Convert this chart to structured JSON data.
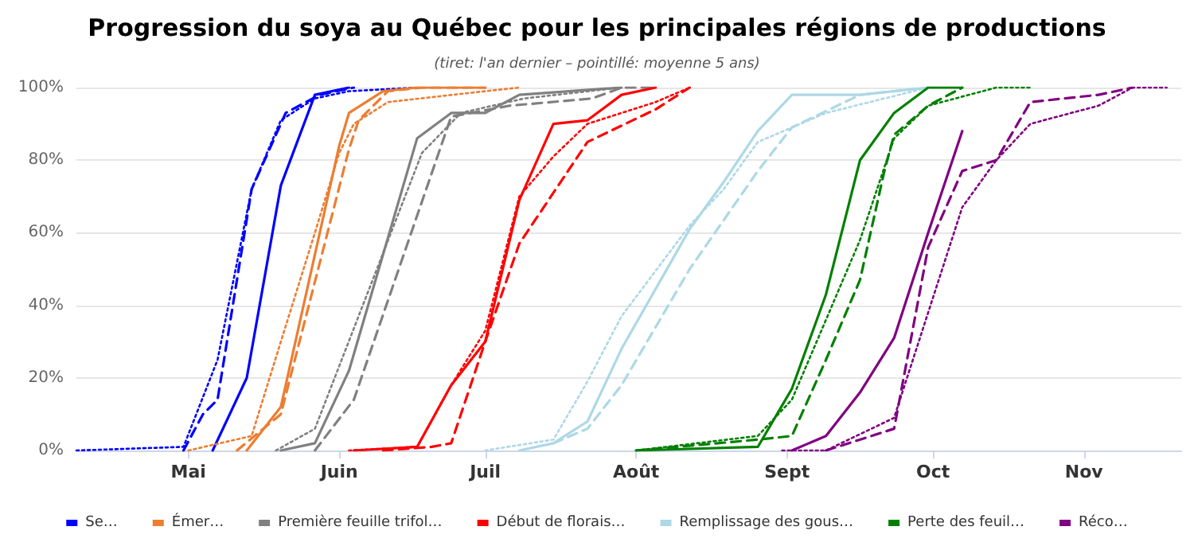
{
  "chart_data": {
    "type": "line",
    "title": "Progression du soya au Québec pour les principales régions de productions",
    "subtitle": "(tiret: l'an dernier – pointillé: moyenne 5 ans)",
    "xlim": [
      "--04-08",
      "--11-21"
    ],
    "xticks": [
      {
        "value": "--05-01",
        "label": "Mai"
      },
      {
        "value": "--06-01",
        "label": "Juin"
      },
      {
        "value": "--07-01",
        "label": "Juil"
      },
      {
        "value": "--08-01",
        "label": "Août"
      },
      {
        "value": "--09-01",
        "label": "Sept"
      },
      {
        "value": "--10-01",
        "label": "Oct"
      },
      {
        "value": "--11-01",
        "label": "Nov"
      }
    ],
    "ylim": [
      0,
      100
    ],
    "yticks": [
      {
        "value": 0,
        "label": "0%"
      },
      {
        "value": 20,
        "label": "20%"
      },
      {
        "value": 40,
        "label": "40%"
      },
      {
        "value": 60,
        "label": "60%"
      },
      {
        "value": 80,
        "label": "80%"
      },
      {
        "value": 100,
        "label": "100%"
      }
    ],
    "grid": "y",
    "legend": "bottom",
    "marker": "none",
    "series": [
      {
        "name": "Se…",
        "color": "#0000ff",
        "line_style": "solid",
        "x": [
          "--05-06",
          "--05-13",
          "--05-20",
          "--05-27",
          "--06-03"
        ],
        "values": [
          0,
          20,
          73,
          98,
          100
        ]
      },
      {
        "color": "#0000ff",
        "line_style": "dashed",
        "x": [
          "--04-30",
          "--05-04",
          "--05-07",
          "--05-14",
          "--05-21",
          "--05-28",
          "--06-04"
        ],
        "values": [
          0,
          10,
          14,
          72,
          93,
          98,
          100
        ]
      },
      {
        "color": "#0000ff",
        "line_style": "dotted",
        "x": [
          "--04-08",
          "--04-30",
          "--05-07",
          "--05-14",
          "--05-20",
          "--05-27",
          "--06-03",
          "--06-17"
        ],
        "values": [
          0,
          1,
          25,
          72,
          91,
          97,
          99,
          100
        ]
      },
      {
        "name": "Émer…",
        "color": "#ed7d31",
        "line_style": "solid",
        "x": [
          "--05-13",
          "--05-20",
          "--06-01",
          "--06-03",
          "--06-10",
          "--06-17",
          "--07-01"
        ],
        "values": [
          0,
          12,
          84,
          93,
          99,
          100,
          100
        ]
      },
      {
        "color": "#ed7d31",
        "line_style": "dashed",
        "x": [
          "--05-11",
          "--05-20",
          "--06-03",
          "--06-05",
          "--06-11",
          "--06-18",
          "--07-01"
        ],
        "values": [
          0,
          10,
          83,
          91,
          99,
          100,
          100
        ]
      },
      {
        "color": "#ed7d31",
        "line_style": "dotted",
        "x": [
          "--05-01",
          "--05-14",
          "--05-20",
          "--05-27",
          "--06-01",
          "--06-04",
          "--06-11",
          "--07-01",
          "--07-08"
        ],
        "values": [
          0,
          4,
          30,
          60,
          82,
          90,
          96,
          99,
          100
        ]
      },
      {
        "name": "Première feuille trifol…",
        "color": "#808080",
        "line_style": "solid",
        "x": [
          "--05-20",
          "--05-27",
          "--06-03",
          "--06-17",
          "--06-24",
          "--07-01",
          "--07-08",
          "--07-29"
        ],
        "values": [
          0,
          2,
          22,
          86,
          93,
          93,
          98,
          100
        ]
      },
      {
        "color": "#808080",
        "line_style": "dashed",
        "x": [
          "--05-27",
          "--06-04",
          "--06-24",
          "--07-06",
          "--07-23",
          "--07-29",
          "--08-05"
        ],
        "values": [
          0,
          14,
          92,
          95,
          97,
          100,
          100
        ]
      },
      {
        "color": "#808080",
        "line_style": "dotted",
        "x": [
          "--05-19",
          "--05-27",
          "--06-18",
          "--06-26",
          "--07-09",
          "--07-29"
        ],
        "values": [
          0,
          6,
          82,
          93,
          97,
          100
        ]
      },
      {
        "name": "Début de florais…",
        "color": "#ff0000",
        "line_style": "solid",
        "x": [
          "--06-04",
          "--06-17",
          "--06-24",
          "--07-01",
          "--07-08",
          "--07-15",
          "--07-22",
          "--07-29",
          "--08-05"
        ],
        "values": [
          0,
          1,
          18,
          30,
          69,
          90,
          91,
          98,
          100
        ]
      },
      {
        "color": "#ff0000",
        "line_style": "dashed",
        "x": [
          "--06-10",
          "--06-20",
          "--06-24",
          "--07-01",
          "--07-08",
          "--07-22",
          "--08-05",
          "--08-12"
        ],
        "values": [
          0,
          1,
          2,
          30,
          57,
          85,
          94,
          100
        ]
      },
      {
        "color": "#ff0000",
        "line_style": "dotted",
        "x": [
          "--06-03",
          "--06-17",
          "--06-24",
          "--07-01",
          "--07-08",
          "--07-15",
          "--07-22",
          "--08-05",
          "--08-12"
        ],
        "values": [
          0,
          1,
          18,
          33,
          70,
          81,
          90,
          96,
          100
        ]
      },
      {
        "name": "Remplissage des gous…",
        "color": "#add8e6",
        "line_style": "solid",
        "x": [
          "--07-08",
          "--07-15",
          "--07-22",
          "--07-29",
          "--08-12",
          "--08-19",
          "--08-26",
          "--09-02",
          "--09-16",
          "--09-30"
        ],
        "values": [
          0,
          2,
          8,
          28,
          61,
          74,
          88,
          98,
          98,
          100
        ]
      },
      {
        "color": "#add8e6",
        "line_style": "dashed",
        "x": [
          "--07-15",
          "--07-22",
          "--07-29",
          "--08-12",
          "--08-26",
          "--09-02",
          "--09-16",
          "--09-30"
        ],
        "values": [
          2,
          6,
          18,
          50,
          77,
          89,
          98,
          100
        ]
      },
      {
        "color": "#add8e6",
        "line_style": "dotted",
        "x": [
          "--07-01",
          "--07-15",
          "--07-22",
          "--07-29",
          "--08-12",
          "--08-19",
          "--08-26",
          "--09-02",
          "--09-09",
          "--09-30"
        ],
        "values": [
          0,
          3,
          19,
          37,
          62,
          72,
          85,
          89,
          93,
          100
        ]
      },
      {
        "name": "Perte des feuil…",
        "color": "#008000",
        "line_style": "solid",
        "x": [
          "--08-01",
          "--08-26",
          "--09-02",
          "--09-09",
          "--09-16",
          "--09-23",
          "--09-30",
          "--10-07"
        ],
        "values": [
          0,
          1,
          17,
          43,
          80,
          93,
          100,
          100
        ]
      },
      {
        "color": "#008000",
        "line_style": "dashed",
        "x": [
          "--08-01",
          "--08-26",
          "--09-02",
          "--09-09",
          "--09-16",
          "--09-21",
          "--09-23",
          "--09-30",
          "--10-07"
        ],
        "values": [
          0,
          3,
          4,
          25,
          47,
          77,
          87,
          95,
          100
        ]
      },
      {
        "color": "#008000",
        "line_style": "dotted",
        "x": [
          "--08-01",
          "--08-26",
          "--09-02",
          "--09-09",
          "--09-16",
          "--09-23",
          "--09-30",
          "--10-14",
          "--10-21"
        ],
        "values": [
          0,
          4,
          14,
          36,
          58,
          86,
          95,
          100,
          100
        ]
      },
      {
        "name": "Réco…",
        "color": "#800080",
        "line_style": "solid",
        "x": [
          "--09-02",
          "--09-09",
          "--09-16",
          "--09-23",
          "--09-30",
          "--10-07"
        ],
        "values": [
          0,
          4,
          16,
          31,
          60,
          88
        ]
      },
      {
        "color": "#800080",
        "line_style": "dashed",
        "x": [
          "--09-09",
          "--09-23",
          "--09-30",
          "--10-07",
          "--10-14",
          "--10-21",
          "--11-04",
          "--11-11"
        ],
        "values": [
          0,
          6,
          56,
          77,
          80,
          96,
          98,
          100
        ]
      },
      {
        "color": "#800080",
        "line_style": "dotted",
        "x": [
          "--08-31",
          "--09-09",
          "--09-23",
          "--09-30",
          "--10-07",
          "--10-14",
          "--10-21",
          "--11-04",
          "--11-11",
          "--11-18"
        ],
        "values": [
          0,
          0,
          9,
          38,
          67,
          80,
          90,
          95,
          100,
          100
        ]
      }
    ]
  }
}
